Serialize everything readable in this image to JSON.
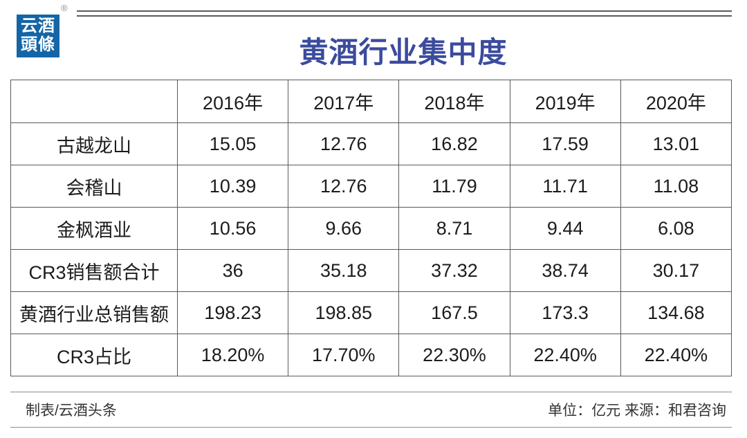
{
  "logo": {
    "line1": "云酒",
    "line2": "頭條",
    "registered": "®",
    "bg_color": "#1365A6"
  },
  "title": "黄酒行业集中度",
  "title_color": "#3B4B9D",
  "table": {
    "header": [
      "",
      "2016年",
      "2017年",
      "2018年",
      "2019年",
      "2020年"
    ],
    "rows": [
      {
        "label": "古越龙山",
        "values": [
          "15.05",
          "12.76",
          "16.82",
          "17.59",
          "13.01"
        ]
      },
      {
        "label": "会稽山",
        "values": [
          "10.39",
          "12.76",
          "11.79",
          "11.71",
          "11.08"
        ]
      },
      {
        "label": "金枫酒业",
        "values": [
          "10.56",
          "9.66",
          "8.71",
          "9.44",
          "6.08"
        ]
      },
      {
        "label": "CR3销售额合计",
        "values": [
          "36",
          "35.18",
          "37.32",
          "38.74",
          "30.17"
        ]
      },
      {
        "label": "黄酒行业总销售额",
        "values": [
          "198.23",
          "198.85",
          "167.5",
          "173.3",
          "134.68"
        ]
      },
      {
        "label": "CR3占比",
        "values": [
          "18.20%",
          "17.70%",
          "22.30%",
          "22.40%",
          "22.40%"
        ]
      }
    ]
  },
  "footer": {
    "left": "制表/云酒头条",
    "right": "单位：亿元 来源：和君咨询"
  },
  "chart_data": {
    "type": "table",
    "title": "黄酒行业集中度",
    "categories": [
      "2016年",
      "2017年",
      "2018年",
      "2019年",
      "2020年"
    ],
    "series": [
      {
        "name": "古越龙山",
        "values": [
          15.05,
          12.76,
          16.82,
          17.59,
          13.01
        ]
      },
      {
        "name": "会稽山",
        "values": [
          10.39,
          12.76,
          11.79,
          11.71,
          11.08
        ]
      },
      {
        "name": "金枫酒业",
        "values": [
          10.56,
          9.66,
          8.71,
          9.44,
          6.08
        ]
      },
      {
        "name": "CR3销售额合计",
        "values": [
          36,
          35.18,
          37.32,
          38.74,
          30.17
        ]
      },
      {
        "name": "黄酒行业总销售额",
        "values": [
          198.23,
          198.85,
          167.5,
          173.3,
          134.68
        ]
      },
      {
        "name": "CR3占比",
        "values": [
          "18.20%",
          "17.70%",
          "22.30%",
          "22.40%",
          "22.40%"
        ]
      }
    ],
    "unit": "亿元",
    "source": "和君咨询",
    "creator": "云酒头条"
  }
}
